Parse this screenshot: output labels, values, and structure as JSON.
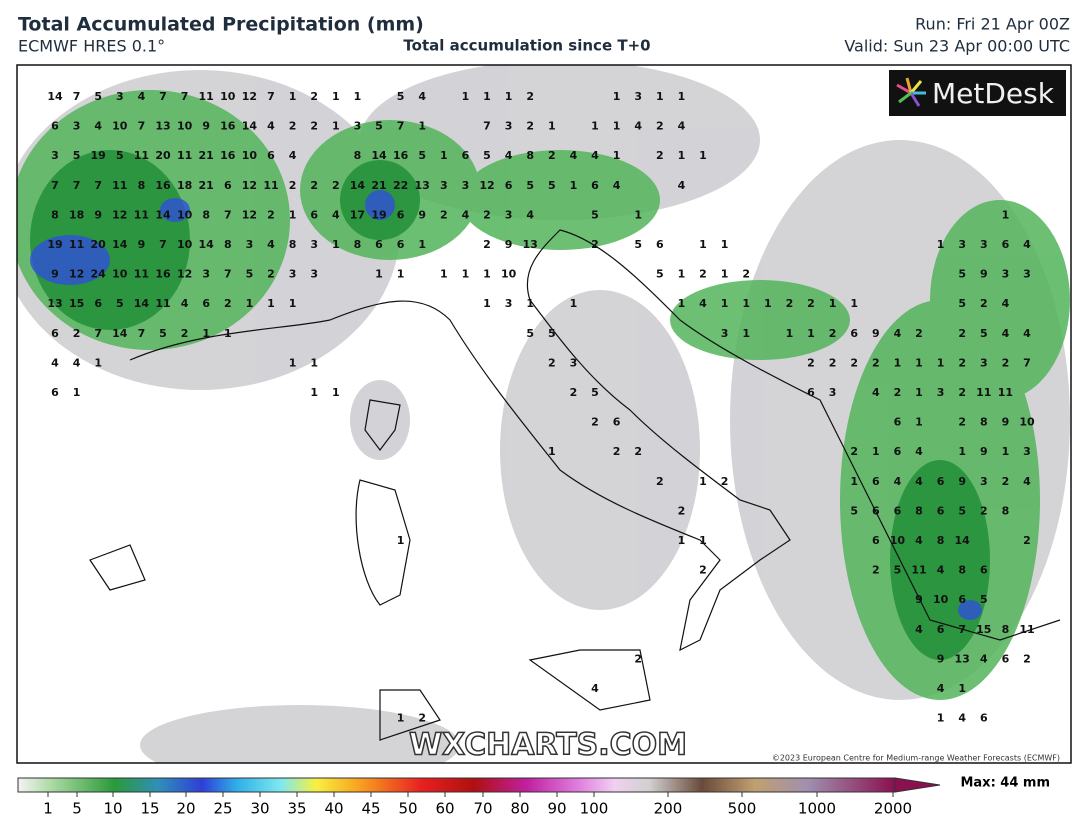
{
  "header": {
    "title": "Total Accumulated Precipitation (mm)",
    "model": "ECMWF HRES 0.1°",
    "subtitle": "Total accumulation since T+0",
    "run": "Run: Fri 21 Apr 00Z",
    "valid": "Valid: Sun 23 Apr 00:00 UTC"
  },
  "logo": "MetDesk",
  "watermark": "WXCHARTS.COM",
  "copyright": "©2023 European Centre for Medium-range Weather Forecasts (ECMWF)",
  "colorbar": {
    "ticks": [
      1,
      5,
      10,
      15,
      20,
      25,
      30,
      35,
      40,
      45,
      50,
      60,
      70,
      80,
      90,
      100,
      200,
      500,
      1000,
      2000
    ],
    "max_label": "Max: 44 mm"
  },
  "map_labels": [
    [
      14,
      7,
      5,
      3,
      4,
      7,
      7,
      11,
      10,
      12,
      7,
      1,
      2,
      1,
      1,
      null,
      5,
      4,
      null,
      1,
      1,
      1,
      2,
      null,
      null,
      null,
      1,
      3,
      1,
      1
    ],
    [
      6,
      3,
      4,
      10,
      7,
      13,
      10,
      9,
      16,
      14,
      4,
      2,
      2,
      1,
      3,
      5,
      7,
      1,
      null,
      null,
      7,
      3,
      2,
      1,
      null,
      1,
      1,
      4,
      2,
      4
    ],
    [
      3,
      5,
      19,
      5,
      11,
      20,
      11,
      21,
      16,
      10,
      6,
      4,
      null,
      null,
      8,
      14,
      16,
      5,
      1,
      6,
      5,
      4,
      8,
      2,
      4,
      4,
      1,
      null,
      2,
      1,
      1
    ],
    [
      7,
      7,
      7,
      11,
      8,
      16,
      18,
      21,
      6,
      12,
      11,
      2,
      2,
      2,
      14,
      21,
      22,
      13,
      3,
      3,
      12,
      6,
      5,
      5,
      1,
      6,
      4,
      null,
      null,
      4
    ],
    [
      8,
      18,
      9,
      12,
      11,
      14,
      10,
      8,
      7,
      12,
      2,
      1,
      6,
      4,
      17,
      19,
      6,
      9,
      2,
      4,
      2,
      3,
      4,
      null,
      null,
      5,
      null,
      1,
      null,
      null,
      null,
      null,
      null,
      null,
      null,
      null,
      null,
      null,
      null,
      null,
      null,
      null,
      null,
      null,
      1
    ],
    [
      19,
      11,
      20,
      14,
      9,
      7,
      10,
      14,
      8,
      3,
      4,
      8,
      3,
      1,
      8,
      6,
      6,
      1,
      null,
      null,
      2,
      9,
      13,
      null,
      null,
      2,
      null,
      5,
      6,
      null,
      1,
      1,
      null,
      null,
      null,
      null,
      null,
      null,
      null,
      null,
      null,
      1,
      3,
      3,
      6,
      4
    ],
    [
      9,
      12,
      24,
      10,
      11,
      16,
      12,
      3,
      7,
      5,
      2,
      3,
      3,
      null,
      null,
      1,
      1,
      null,
      1,
      1,
      1,
      10,
      null,
      null,
      null,
      null,
      null,
      null,
      5,
      1,
      2,
      1,
      2,
      null,
      null,
      null,
      null,
      null,
      null,
      null,
      null,
      null,
      5,
      9,
      3,
      3
    ],
    [
      13,
      15,
      6,
      5,
      14,
      11,
      4,
      6,
      2,
      1,
      1,
      1,
      null,
      null,
      null,
      null,
      null,
      null,
      null,
      null,
      1,
      3,
      1,
      null,
      1,
      null,
      null,
      null,
      null,
      1,
      4,
      1,
      1,
      1,
      2,
      2,
      1,
      1,
      null,
      null,
      null,
      null,
      5,
      2,
      4
    ],
    [
      6,
      2,
      7,
      14,
      7,
      5,
      2,
      1,
      1,
      null,
      null,
      null,
      null,
      null,
      null,
      null,
      null,
      null,
      null,
      null,
      null,
      null,
      5,
      5,
      null,
      null,
      null,
      null,
      null,
      null,
      null,
      3,
      1,
      null,
      1,
      1,
      2,
      6,
      9,
      4,
      2,
      null,
      2,
      5,
      4,
      4
    ],
    [
      4,
      4,
      1,
      null,
      null,
      null,
      null,
      null,
      null,
      null,
      null,
      1,
      1,
      null,
      null,
      null,
      null,
      null,
      null,
      null,
      null,
      null,
      null,
      2,
      3,
      null,
      null,
      null,
      null,
      null,
      null,
      null,
      null,
      null,
      null,
      2,
      2,
      2,
      2,
      1,
      1,
      1,
      2,
      3,
      2,
      7
    ],
    [
      6,
      1,
      null,
      null,
      null,
      null,
      null,
      null,
      null,
      null,
      null,
      null,
      1,
      1,
      null,
      null,
      null,
      null,
      null,
      null,
      null,
      null,
      null,
      null,
      2,
      5,
      null,
      null,
      null,
      null,
      null,
      null,
      null,
      null,
      null,
      6,
      3,
      null,
      4,
      2,
      1,
      3,
      2,
      11,
      11
    ],
    [
      null,
      null,
      null,
      null,
      null,
      null,
      null,
      null,
      null,
      null,
      null,
      null,
      null,
      null,
      null,
      null,
      null,
      null,
      null,
      null,
      null,
      null,
      null,
      null,
      null,
      2,
      6,
      null,
      null,
      null,
      null,
      null,
      null,
      null,
      null,
      null,
      null,
      null,
      null,
      6,
      1,
      null,
      2,
      8,
      9,
      10
    ],
    [
      null,
      null,
      null,
      null,
      null,
      null,
      null,
      null,
      null,
      null,
      null,
      null,
      null,
      null,
      null,
      null,
      null,
      null,
      null,
      null,
      null,
      null,
      null,
      1,
      null,
      null,
      2,
      2,
      null,
      null,
      null,
      null,
      null,
      null,
      null,
      null,
      null,
      2,
      1,
      6,
      4,
      null,
      1,
      9,
      1,
      3
    ],
    [
      null,
      null,
      null,
      null,
      null,
      null,
      null,
      null,
      null,
      null,
      null,
      null,
      null,
      null,
      null,
      null,
      null,
      null,
      null,
      null,
      null,
      null,
      null,
      null,
      null,
      null,
      null,
      null,
      2,
      null,
      1,
      2,
      null,
      null,
      null,
      null,
      null,
      1,
      6,
      4,
      4,
      6,
      9,
      3,
      2,
      4
    ],
    [
      null,
      null,
      null,
      null,
      null,
      null,
      null,
      null,
      null,
      null,
      null,
      null,
      null,
      null,
      null,
      null,
      null,
      null,
      null,
      null,
      null,
      null,
      null,
      null,
      null,
      null,
      null,
      null,
      null,
      2,
      null,
      null,
      null,
      null,
      null,
      null,
      null,
      5,
      6,
      6,
      8,
      6,
      5,
      2,
      8
    ],
    [
      null,
      null,
      null,
      null,
      null,
      null,
      null,
      null,
      null,
      null,
      null,
      null,
      null,
      null,
      null,
      null,
      1,
      null,
      null,
      null,
      null,
      null,
      null,
      null,
      null,
      null,
      null,
      null,
      null,
      1,
      1,
      null,
      null,
      null,
      null,
      null,
      null,
      null,
      6,
      10,
      4,
      8,
      14,
      null,
      null,
      2
    ],
    [
      null,
      null,
      null,
      null,
      null,
      null,
      null,
      null,
      null,
      null,
      null,
      null,
      null,
      null,
      null,
      null,
      null,
      null,
      null,
      null,
      null,
      null,
      null,
      null,
      null,
      null,
      null,
      null,
      null,
      null,
      2,
      null,
      null,
      null,
      null,
      null,
      null,
      null,
      2,
      5,
      11,
      4,
      8,
      6
    ],
    [
      null,
      null,
      null,
      null,
      null,
      null,
      null,
      null,
      null,
      null,
      null,
      null,
      null,
      null,
      null,
      null,
      null,
      null,
      null,
      null,
      null,
      null,
      null,
      null,
      null,
      null,
      null,
      null,
      null,
      null,
      null,
      null,
      null,
      null,
      null,
      null,
      null,
      null,
      null,
      null,
      9,
      10,
      6,
      5
    ],
    [
      null,
      null,
      null,
      null,
      null,
      null,
      null,
      null,
      null,
      null,
      null,
      null,
      null,
      null,
      null,
      null,
      null,
      null,
      null,
      null,
      null,
      null,
      null,
      null,
      null,
      null,
      null,
      null,
      null,
      null,
      null,
      null,
      null,
      null,
      null,
      null,
      null,
      null,
      null,
      null,
      4,
      6,
      7,
      15,
      8,
      11
    ],
    [
      null,
      null,
      null,
      null,
      null,
      null,
      null,
      null,
      null,
      null,
      null,
      null,
      null,
      null,
      null,
      null,
      null,
      null,
      null,
      null,
      null,
      null,
      null,
      null,
      null,
      null,
      null,
      2,
      null,
      null,
      null,
      null,
      null,
      null,
      null,
      null,
      null,
      null,
      null,
      null,
      null,
      9,
      13,
      4,
      6,
      2
    ],
    [
      null,
      null,
      null,
      null,
      null,
      null,
      null,
      null,
      null,
      null,
      null,
      null,
      null,
      null,
      null,
      null,
      null,
      null,
      null,
      null,
      null,
      null,
      null,
      null,
      null,
      4,
      null,
      null,
      null,
      null,
      null,
      null,
      null,
      null,
      null,
      null,
      null,
      null,
      null,
      null,
      null,
      4,
      1
    ],
    [
      null,
      null,
      null,
      null,
      null,
      null,
      null,
      null,
      null,
      null,
      null,
      null,
      null,
      null,
      null,
      null,
      1,
      2,
      null,
      null,
      null,
      null,
      null,
      null,
      null,
      null,
      null,
      null,
      null,
      null,
      null,
      null,
      null,
      null,
      null,
      null,
      null,
      null,
      null,
      null,
      null,
      1,
      4,
      6
    ]
  ]
}
